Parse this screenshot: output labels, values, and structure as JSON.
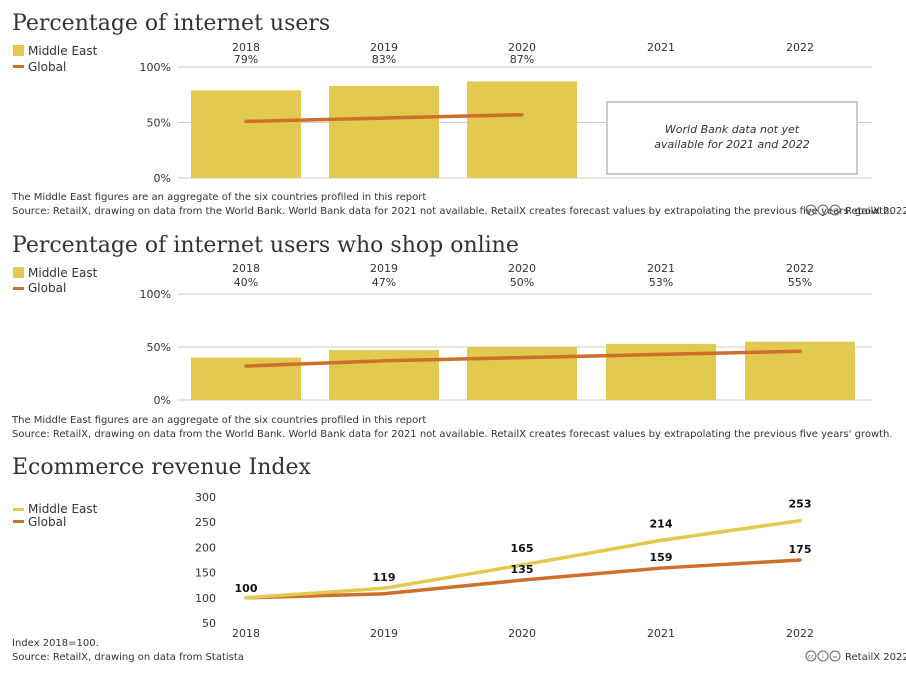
{
  "colors": {
    "middle_east": "#e2c94f",
    "global": "#cf6f2c",
    "grid": "#cccccc",
    "text": "#333333"
  },
  "legend": {
    "middle_east": "Middle East",
    "global": "Global"
  },
  "credit": "RetailX 2022",
  "chart_data": [
    {
      "type": "bar",
      "title": "Percentage of internet users",
      "categories": [
        "2018",
        "2019",
        "2020",
        "2021",
        "2022"
      ],
      "value_labels": [
        "79%",
        "83%",
        "87%",
        "",
        ""
      ],
      "series": [
        {
          "name": "Middle East",
          "values": [
            79,
            83,
            87,
            null,
            null
          ]
        },
        {
          "name": "Global",
          "type": "line",
          "values": [
            51,
            54,
            57,
            null,
            null
          ]
        }
      ],
      "y_ticks": [
        "100%",
        "50%",
        "0%"
      ],
      "ylim": [
        0,
        100
      ],
      "annotation": "World Bank data not yet available for 2021 and 2022",
      "note": "The Middle East figures are an aggregate of the six countries profiled in this report",
      "source": "Source: RetailX, drawing on data from the World Bank. World Bank data for 2021 not available. RetailX creates forecast values by extrapolating the previous five years' growth."
    },
    {
      "type": "bar",
      "title": "Percentage of internet users who shop online",
      "categories": [
        "2018",
        "2019",
        "2020",
        "2021",
        "2022"
      ],
      "value_labels": [
        "40%",
        "47%",
        "50%",
        "53%",
        "55%"
      ],
      "series": [
        {
          "name": "Middle East",
          "values": [
            40,
            47,
            50,
            53,
            55
          ]
        },
        {
          "name": "Global",
          "type": "line",
          "values": [
            32,
            37,
            40,
            43,
            46
          ]
        }
      ],
      "y_ticks": [
        "100%",
        "50%",
        "0%"
      ],
      "ylim": [
        0,
        100
      ],
      "note": "The Middle East figures are an aggregate of the six countries profiled in this report",
      "source": "Source: RetailX, drawing on data from the World Bank. World Bank data for 2021 not available. RetailX creates forecast values by extrapolating the previous five years' growth."
    },
    {
      "type": "line",
      "title": "Ecommerce revenue Index",
      "categories": [
        "2018",
        "2019",
        "2020",
        "2021",
        "2022"
      ],
      "series": [
        {
          "name": "Middle East",
          "values": [
            100,
            119,
            165,
            214,
            253
          ],
          "labels": [
            "100",
            "119",
            "165",
            "214",
            "253"
          ]
        },
        {
          "name": "Global",
          "values": [
            100,
            108,
            135,
            159,
            175
          ],
          "labels": [
            "",
            "",
            "135",
            "159",
            "175"
          ]
        }
      ],
      "y_ticks": [
        "300",
        "250",
        "200",
        "150",
        "100",
        "50"
      ],
      "ylim": [
        50,
        300
      ],
      "note": "Index 2018=100.",
      "source": "Source: RetailX, drawing on data from Statista"
    }
  ]
}
